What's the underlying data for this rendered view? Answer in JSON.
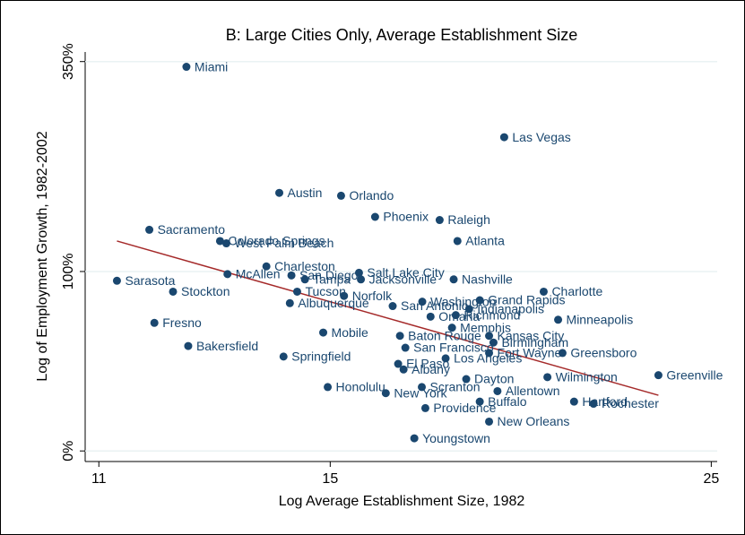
{
  "chart_data": {
    "type": "scatter",
    "title": "B: Large Cities Only, Average Establishment Size",
    "x_label": "Log Average Establishment Size, 1982",
    "y_label": "Log of Employment Growth, 1982-2002",
    "x_scale": "log",
    "y_scale": "log",
    "xlim": [
      10.8,
      25.2
    ],
    "ylim": [
      -4,
      367
    ],
    "xticks": [
      11,
      15,
      25
    ],
    "yticks": [
      {
        "value": 0,
        "label": "0%"
      },
      {
        "value": 100,
        "label": "100%"
      },
      {
        "value": 350,
        "label": "350%"
      }
    ],
    "grid": true,
    "color": "#1a476f",
    "labels": [
      "Miami",
      "Las Vegas",
      "Austin",
      "Orlando",
      "Phoenix",
      "Raleigh",
      "Atlanta",
      "Sacramento",
      "Colorado Springs",
      "West Palm Beach",
      "Charleston",
      "McAllen",
      "Sarasota",
      "Stockton",
      "Fresno",
      "Bakersfield",
      "Springfield",
      "Mobile",
      "Honolulu",
      "Salt Lake City",
      "San Diego",
      "Tampa",
      "Jacksonville",
      "Nashville",
      "Tucson",
      "Norfolk",
      "Albuquerque",
      "San Antonio",
      "Washington",
      "Charlotte",
      "Grand Rapids",
      "Indianapolis",
      "Richmond",
      "Omaha",
      "Minneapolis",
      "Memphis",
      "Kansas City",
      "Birmingham",
      "Baton Rouge",
      "San Francisco",
      "Greensboro",
      "Fort Wayne",
      "Los Angeles",
      "El Paso",
      "Albany",
      "Dayton",
      "Greenville",
      "Wilmington",
      "Allentown",
      "Hartford",
      "Rochester",
      "Providence",
      "Scranton",
      "New York",
      "Buffalo",
      "New Orleans",
      "Youngstown"
    ],
    "x": [
      12.37,
      18.94,
      14.01,
      15.22,
      15.93,
      17.37,
      17.79,
      11.77,
      12.94,
      13.05,
      13.77,
      13.07,
      11.27,
      12.15,
      11.85,
      12.4,
      14.09,
      14.86,
      14.95,
      15.59,
      14.24,
      14.5,
      15.63,
      17.7,
      14.35,
      15.28,
      14.21,
      16.31,
      16.97,
      19.97,
      18.33,
      18.07,
      17.75,
      17.16,
      20.36,
      17.66,
      18.56,
      18.67,
      16.47,
      16.59,
      20.48,
      18.56,
      17.51,
      16.43,
      16.55,
      18.0,
      23.29,
      20.07,
      18.77,
      20.8,
      21.35,
      17.04,
      16.96,
      16.16,
      18.33,
      18.56,
      16.79
    ],
    "values": [
      341,
      236,
      171,
      168,
      147,
      144,
      125,
      135,
      125,
      123,
      104,
      98,
      93,
      85,
      64,
      50,
      44,
      58,
      28,
      99,
      97,
      94,
      94,
      94,
      85,
      82,
      77,
      75,
      78,
      85,
      79,
      73,
      69,
      68,
      66,
      61,
      56,
      52,
      56,
      49,
      46,
      46,
      43,
      40,
      37,
      32,
      34,
      33,
      26,
      21,
      20,
      18,
      28,
      25,
      21,
      12,
      5
    ],
    "fit_line": {
      "x": [
        11.27,
        23.29
      ],
      "values": [
        125,
        24
      ],
      "color": "#a52a2a"
    }
  }
}
